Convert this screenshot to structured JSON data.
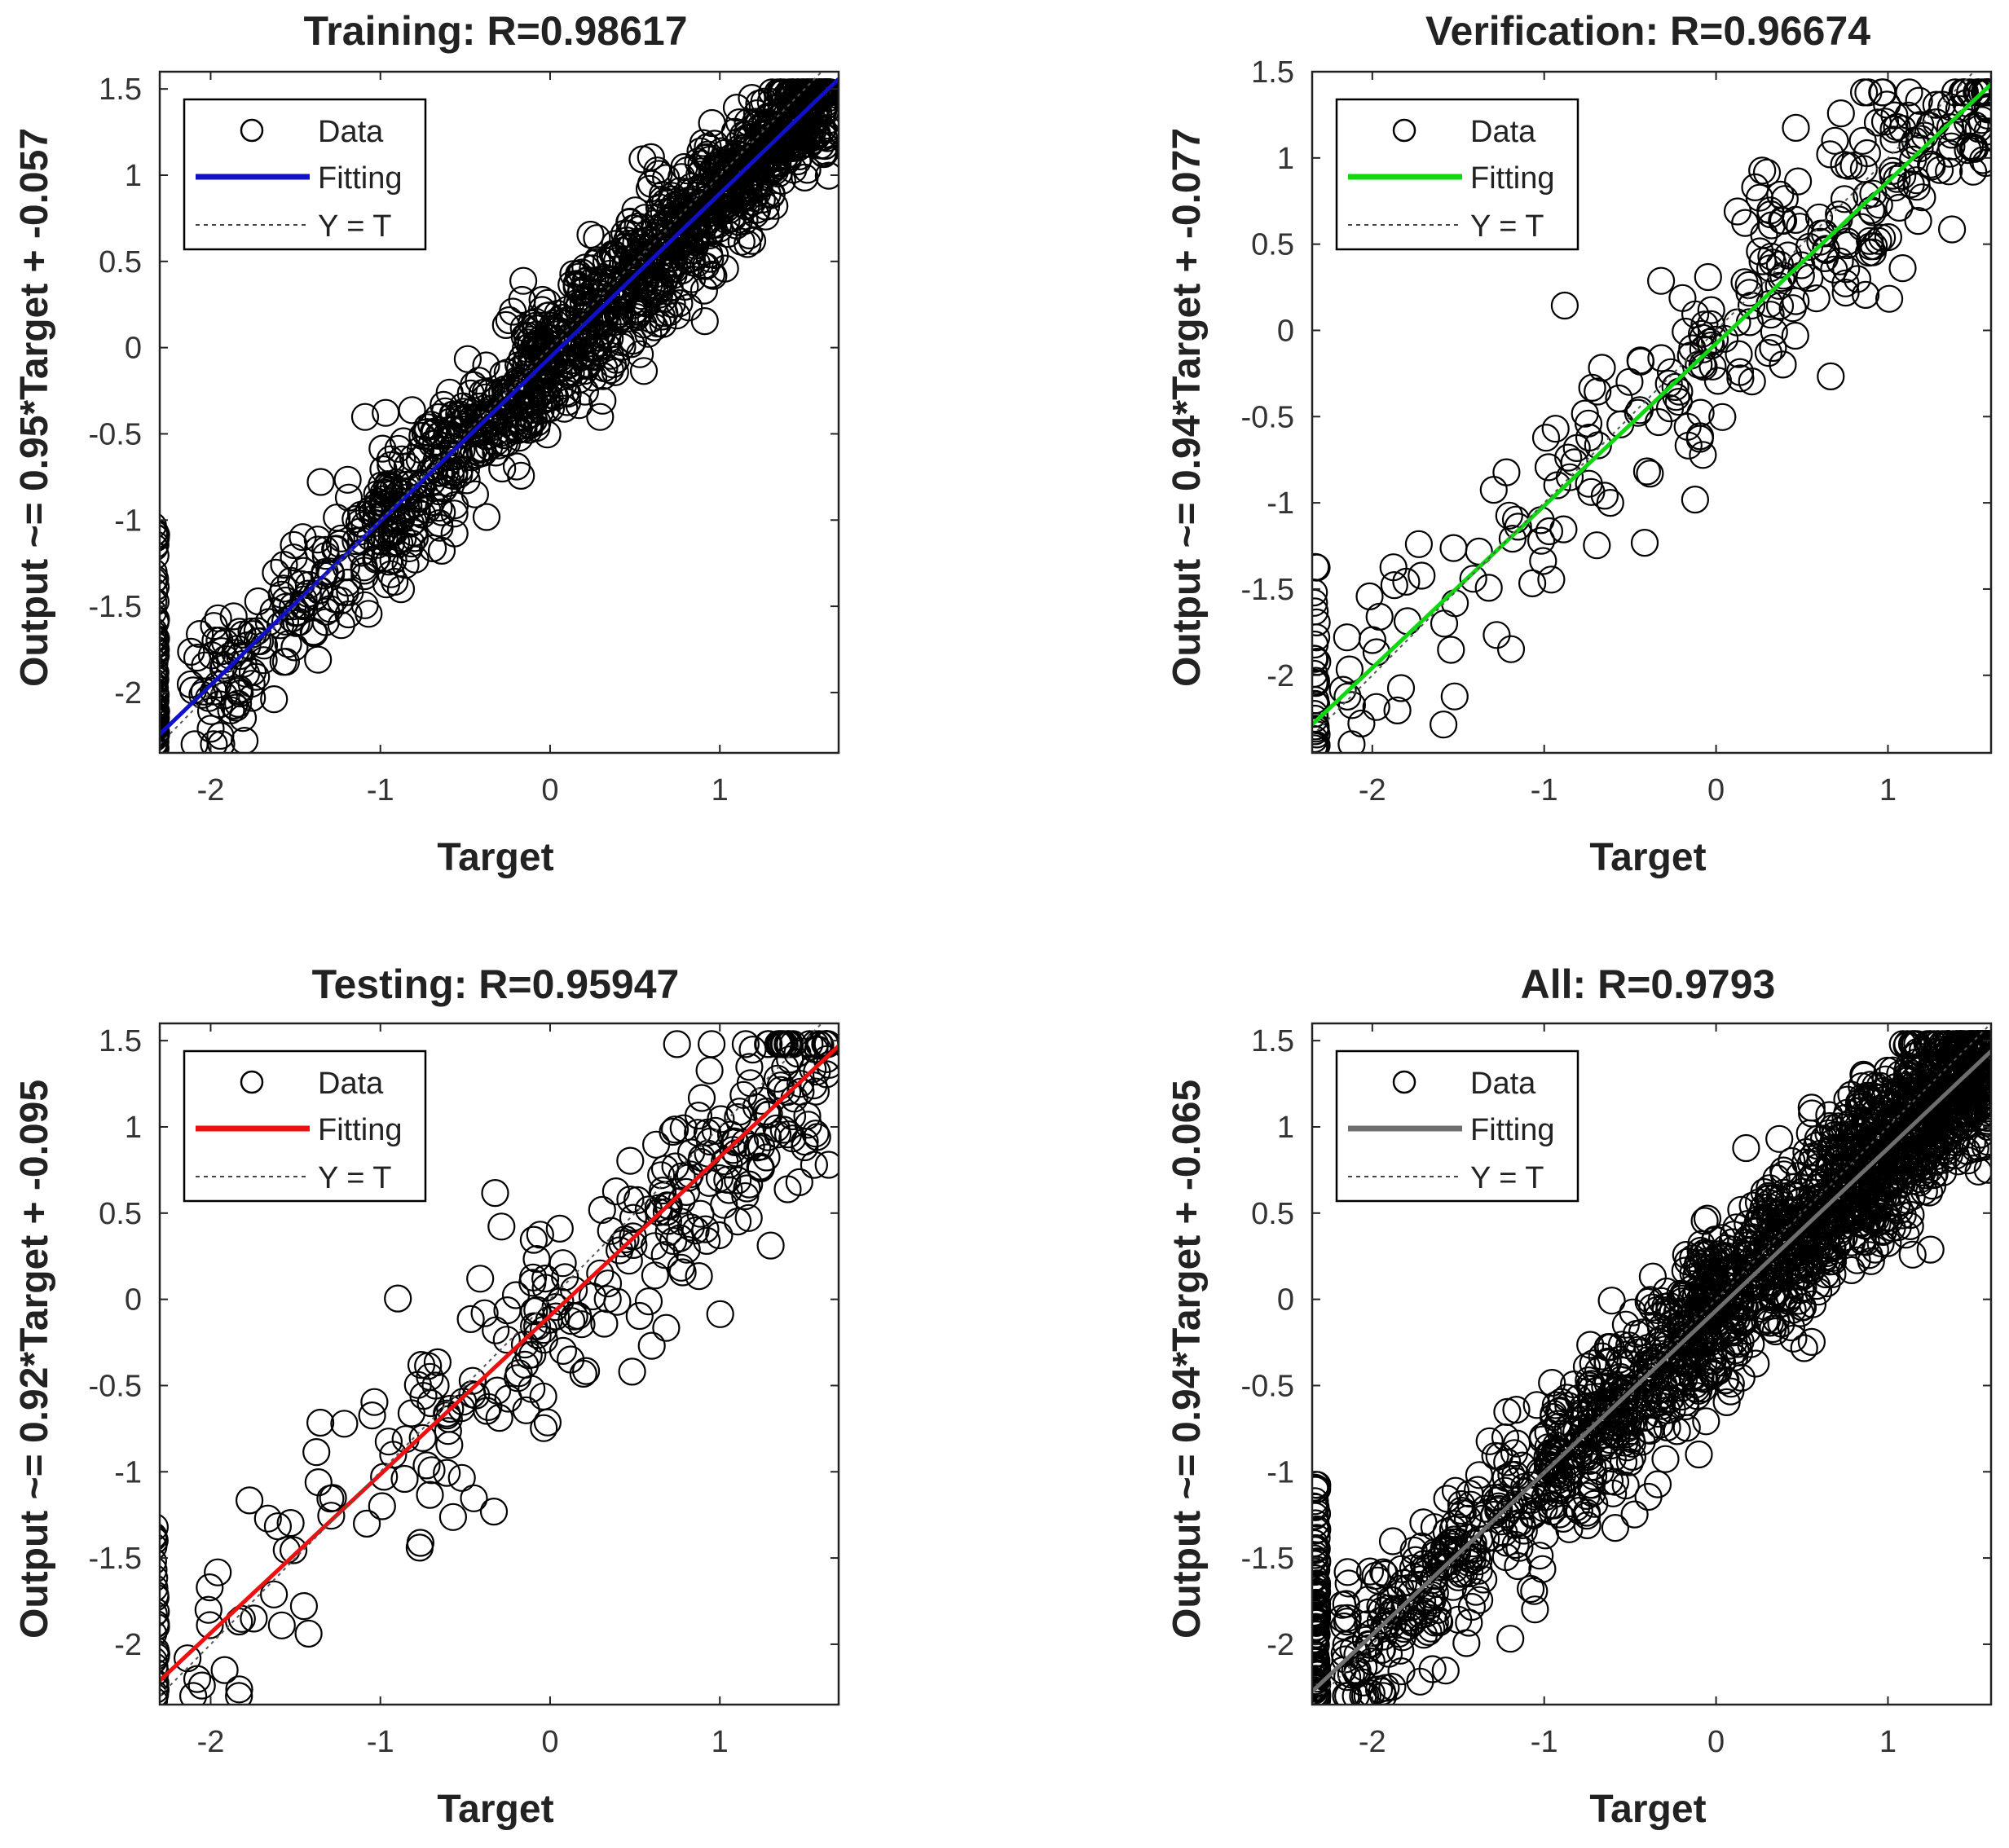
{
  "chart_data": [
    {
      "type": "scatter",
      "title": "Training: R=0.98617",
      "xlabel": "Target",
      "ylabel": "Output ~= 0.95*Target + -0.057",
      "xlim": [
        -2.3,
        1.7
      ],
      "ylim": [
        -2.35,
        1.6
      ],
      "xticks": [
        -2,
        -1,
        0,
        1
      ],
      "yticks": [
        -2,
        -1.5,
        -1,
        -0.5,
        0,
        0.5,
        1,
        1.5
      ],
      "fit": {
        "slope": 0.95,
        "intercept": -0.057,
        "color": "#1010c8"
      },
      "legend": {
        "data": "Data",
        "fit": "Fitting",
        "identity": "Y = T",
        "position": "top-left"
      },
      "points": {
        "n": 1400,
        "noise": 0.2,
        "floor_count": 85,
        "floor_x": -2.33,
        "seed": 11
      }
    },
    {
      "type": "scatter",
      "title": "Verification: R=0.96674",
      "xlabel": "Target",
      "ylabel": "Output ~= 0.94*Target + -0.077",
      "xlim": [
        -2.35,
        1.6
      ],
      "ylim": [
        -2.45,
        1.5
      ],
      "xticks": [
        -2,
        -1,
        0,
        1
      ],
      "yticks": [
        -2,
        -1.5,
        -1,
        -0.5,
        0,
        0.5,
        1,
        1.5
      ],
      "fit": {
        "slope": 0.94,
        "intercept": -0.077,
        "color": "#10d810"
      },
      "legend": {
        "data": "Data",
        "fit": "Fitting",
        "identity": "Y = T",
        "position": "top-left"
      },
      "points": {
        "n": 300,
        "noise": 0.32,
        "floor_count": 30,
        "floor_x": -2.33,
        "seed": 23
      }
    },
    {
      "type": "scatter",
      "title": "Testing: R=0.95947",
      "xlabel": "Target",
      "ylabel": "Output ~= 0.92*Target + -0.095",
      "xlim": [
        -2.3,
        1.7
      ],
      "ylim": [
        -2.35,
        1.6
      ],
      "xticks": [
        -2,
        -1,
        0,
        1
      ],
      "yticks": [
        -2,
        -1.5,
        -1,
        -0.5,
        0,
        0.5,
        1,
        1.5
      ],
      "fit": {
        "slope": 0.92,
        "intercept": -0.095,
        "color": "#ee1010"
      },
      "legend": {
        "data": "Data",
        "fit": "Fitting",
        "identity": "Y = T",
        "position": "top-left"
      },
      "points": {
        "n": 300,
        "noise": 0.33,
        "floor_count": 30,
        "floor_x": -2.33,
        "seed": 37
      }
    },
    {
      "type": "scatter",
      "title": "All: R=0.9793",
      "xlabel": "Target",
      "ylabel": "Output ~= 0.94*Target + -0.065",
      "xlim": [
        -2.35,
        1.6
      ],
      "ylim": [
        -2.35,
        1.6
      ],
      "xticks": [
        -2,
        -1,
        0,
        1
      ],
      "yticks": [
        -2,
        -1.5,
        -1,
        -0.5,
        0,
        0.5,
        1,
        1.5
      ],
      "fit": {
        "slope": 0.94,
        "intercept": -0.065,
        "color": "#6e6e6e"
      },
      "legend": {
        "data": "Data",
        "fit": "Fitting",
        "identity": "Y = T",
        "position": "top-left"
      },
      "points": {
        "n": 1900,
        "noise": 0.24,
        "floor_count": 120,
        "floor_x": -2.33,
        "seed": 53
      }
    }
  ]
}
